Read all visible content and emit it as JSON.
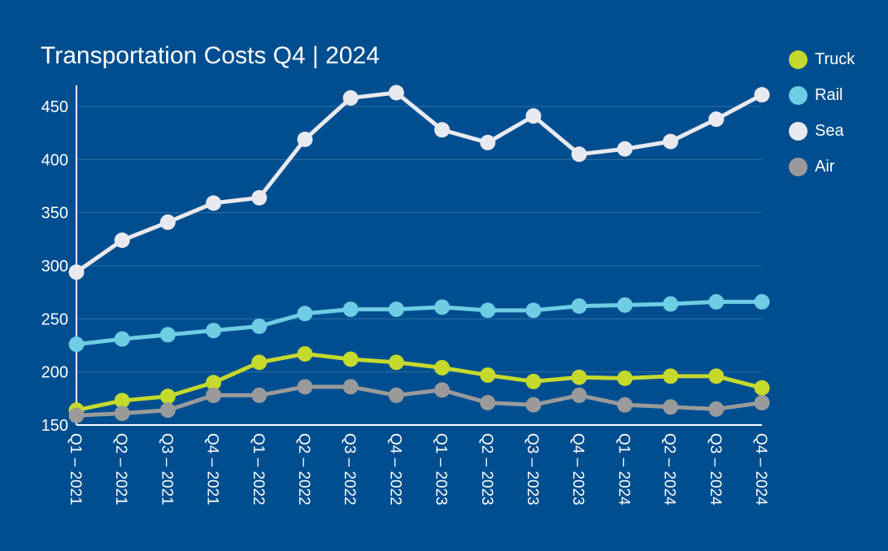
{
  "chart_data": {
    "type": "line",
    "title": "Transportation Costs Q4 | 2024",
    "xlabel": "",
    "ylabel": "",
    "ylim": [
      150,
      470
    ],
    "yticks": [
      150,
      200,
      250,
      300,
      350,
      400,
      450
    ],
    "grid": true,
    "legend": "right",
    "categories": [
      "Q1 – 2021",
      "Q2 – 2021",
      "Q3 – 2021",
      "Q4 – 2021",
      "Q1 – 2022",
      "Q2 – 2022",
      "Q3 – 2022",
      "Q4 – 2022",
      "Q1 – 2023",
      "Q2 – 2023",
      "Q3 – 2023",
      "Q4 – 2023",
      "Q1 – 2024",
      "Q2 – 2024",
      "Q3 – 2024",
      "Q4 – 2024"
    ],
    "series": [
      {
        "name": "Truck",
        "color": "#c5d92d",
        "values": [
          164,
          173,
          177,
          190,
          209,
          217,
          212,
          209,
          204,
          197,
          191,
          195,
          194,
          196,
          196,
          185
        ]
      },
      {
        "name": "Rail",
        "color": "#6ecde4",
        "values": [
          226,
          231,
          235,
          239,
          243,
          255,
          259,
          259,
          261,
          258,
          258,
          262,
          263,
          264,
          266,
          266
        ]
      },
      {
        "name": "Sea",
        "color": "#e8e9ef",
        "values": [
          294,
          324,
          341,
          359,
          364,
          419,
          458,
          463,
          428,
          416,
          441,
          405,
          410,
          417,
          438,
          461
        ]
      },
      {
        "name": "Air",
        "color": "#9a9a9a",
        "values": [
          159,
          161,
          164,
          178,
          178,
          186,
          186,
          178,
          183,
          171,
          169,
          178,
          169,
          167,
          165,
          171
        ]
      }
    ]
  }
}
